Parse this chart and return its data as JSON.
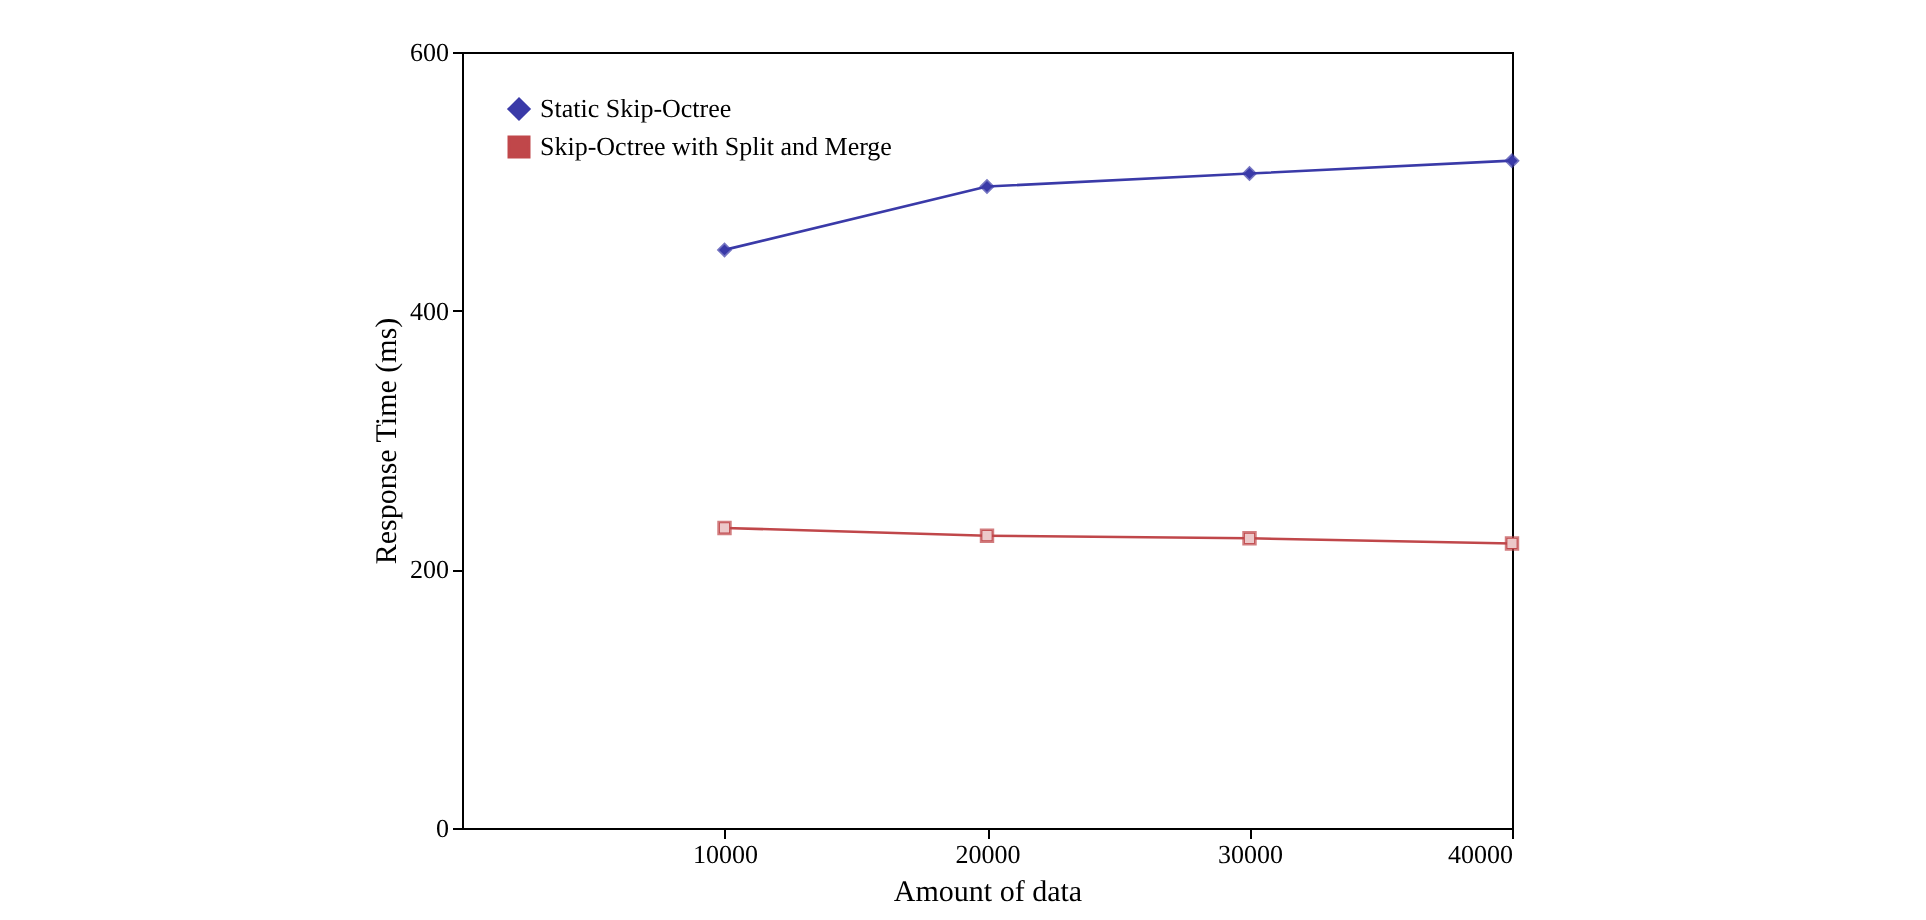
{
  "chart_data": {
    "type": "line",
    "xlabel": "Amount of data",
    "ylabel": "Response Time (ms)",
    "x": [
      10000,
      20000,
      30000,
      40000
    ],
    "xlim": [
      0,
      40000
    ],
    "xticks": [
      10000,
      20000,
      30000,
      40000
    ],
    "ylim": [
      0,
      600
    ],
    "yticks": [
      0,
      200,
      400,
      600
    ],
    "grid": false,
    "legend": "top left",
    "line_style": "solid",
    "series": [
      {
        "name": "Static Skip-Octree",
        "color": "#3a3aa8",
        "marker": "diamond",
        "values": [
          447,
          496,
          506,
          516
        ]
      },
      {
        "name": "Skip-Octree with Split and Merge",
        "color": "#c0474a",
        "marker": "square",
        "values": [
          232,
          226,
          224,
          220
        ]
      }
    ]
  }
}
